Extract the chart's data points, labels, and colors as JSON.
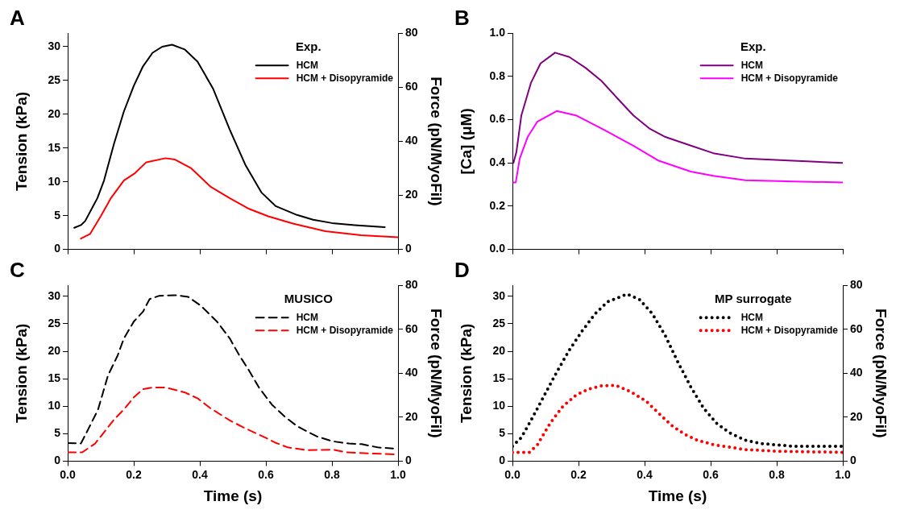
{
  "chart_data": [
    {
      "type": "line",
      "title": "A",
      "ylabel": "Tension (kPa)",
      "y2label": "Force (pN/MyoFil)",
      "legend_title": "Exp.",
      "legend": "top right",
      "line_style": "solid",
      "tick_labels": "y",
      "xlim": [
        0,
        1
      ],
      "xticks": [
        {
          "value": 0,
          "label": null
        },
        {
          "value": 0.2,
          "label": null
        },
        {
          "value": 0.4,
          "label": null
        },
        {
          "value": 0.6,
          "label": null
        },
        {
          "value": 0.8,
          "label": null
        },
        {
          "value": 1,
          "label": null
        }
      ],
      "ylim": [
        0,
        32
      ],
      "yticks": [
        0,
        5,
        10,
        15,
        20,
        25,
        30
      ],
      "y2lim": [
        0,
        80
      ],
      "y2ticks": [
        0,
        20,
        40,
        60,
        80
      ],
      "series": [
        {
          "name": "HCM",
          "color": "#000000",
          "x": [
            0.02,
            0.04,
            0.053,
            0.09,
            0.11,
            0.14,
            0.17,
            0.2,
            0.228,
            0.257,
            0.286,
            0.316,
            0.354,
            0.393,
            0.44,
            0.49,
            0.539,
            0.587,
            0.63,
            0.694,
            0.743,
            0.8,
            0.869,
            0.96
          ],
          "values": [
            3.2,
            3.6,
            4.2,
            7.6,
            10.2,
            15.6,
            20.4,
            24.2,
            27.1,
            29.1,
            30.0,
            30.3,
            29.6,
            27.8,
            23.8,
            17.8,
            12.4,
            8.4,
            6.4,
            5.1,
            4.4,
            3.9,
            3.6,
            3.3
          ]
        },
        {
          "name": "HCM + Disopyramide",
          "color": "#ff0000",
          "x": [
            0.04,
            0.068,
            0.1,
            0.131,
            0.17,
            0.204,
            0.238,
            0.296,
            0.325,
            0.374,
            0.432,
            0.49,
            0.549,
            0.607,
            0.684,
            0.78,
            0.888,
            1.0
          ],
          "values": [
            1.6,
            2.3,
            4.9,
            7.6,
            10.2,
            11.3,
            12.9,
            13.5,
            13.3,
            12.0,
            9.3,
            7.6,
            6.0,
            4.9,
            3.8,
            2.7,
            2.1,
            1.8
          ]
        }
      ]
    },
    {
      "type": "line",
      "title": "B",
      "ylabel": "[Ca] (μM)",
      "legend_title": "Exp.",
      "legend": "top right",
      "line_style": "solid",
      "tick_labels": "y",
      "xlim": [
        0,
        1
      ],
      "xticks": [
        {
          "value": 0,
          "label": null
        },
        {
          "value": 0.2,
          "label": null
        },
        {
          "value": 0.4,
          "label": null
        },
        {
          "value": 0.6,
          "label": null
        },
        {
          "value": 0.8,
          "label": null
        },
        {
          "value": 1,
          "label": null
        }
      ],
      "ylim": [
        0,
        1
      ],
      "yticks": [
        {
          "value": 0,
          "label": "0.0"
        },
        {
          "value": 0.2,
          "label": "0.2"
        },
        {
          "value": 0.4,
          "label": "0.4"
        },
        {
          "value": 0.6,
          "label": "0.6"
        },
        {
          "value": 0.8,
          "label": "0.8"
        },
        {
          "value": 1,
          "label": "1.0"
        }
      ],
      "series": [
        {
          "name": "HCM",
          "color": "#800080",
          "x": [
            0.003,
            0.012,
            0.027,
            0.056,
            0.085,
            0.129,
            0.172,
            0.221,
            0.269,
            0.317,
            0.366,
            0.414,
            0.463,
            0.54,
            0.608,
            0.705,
            0.85,
            1.0
          ],
          "values": [
            0.4,
            0.45,
            0.62,
            0.77,
            0.86,
            0.91,
            0.89,
            0.84,
            0.78,
            0.7,
            0.62,
            0.56,
            0.52,
            0.48,
            0.445,
            0.42,
            0.41,
            0.4
          ]
        },
        {
          "name": "HCM + Disopyramide",
          "color": "#ff00ff",
          "x": [
            0.003,
            0.01,
            0.022,
            0.046,
            0.075,
            0.134,
            0.192,
            0.269,
            0.366,
            0.443,
            0.54,
            0.608,
            0.705,
            0.85,
            1.0
          ],
          "values": [
            0.31,
            0.31,
            0.42,
            0.52,
            0.59,
            0.64,
            0.62,
            0.56,
            0.48,
            0.41,
            0.36,
            0.34,
            0.32,
            0.314,
            0.31
          ]
        }
      ]
    },
    {
      "type": "line",
      "title": "C",
      "xlabel": "Time (s)",
      "ylabel": "Tension (kPa)",
      "y2label": "Force (pN/MyoFil)",
      "legend_title": "MUSICO",
      "legend": "top right",
      "line_style": "dashed",
      "xlim": [
        0,
        1
      ],
      "xticks": [
        {
          "value": 0,
          "label": "0.0"
        },
        {
          "value": 0.2,
          "label": "0.2"
        },
        {
          "value": 0.4,
          "label": "0.4"
        },
        {
          "value": 0.6,
          "label": "0.6"
        },
        {
          "value": 0.8,
          "label": "0.8"
        },
        {
          "value": 1,
          "label": "1.0"
        }
      ],
      "ylim": [
        0,
        32
      ],
      "yticks": [
        0,
        5,
        10,
        15,
        20,
        25,
        30
      ],
      "y2lim": [
        0,
        80
      ],
      "y2ticks": [
        0,
        20,
        40,
        60,
        80
      ],
      "series": [
        {
          "name": "HCM",
          "color": "#000000",
          "x": [
            0,
            0.04,
            0.063,
            0.092,
            0.122,
            0.151,
            0.17,
            0.2,
            0.228,
            0.248,
            0.277,
            0.326,
            0.365,
            0.403,
            0.452,
            0.491,
            0.52,
            0.549,
            0.579,
            0.618,
            0.657,
            0.696,
            0.754,
            0.803,
            0.851,
            0.89,
            0.938,
            0.985
          ],
          "values": [
            3.3,
            3.2,
            5.9,
            9.4,
            15.6,
            19.2,
            22.3,
            25.4,
            27.2,
            29.5,
            30.1,
            30.2,
            29.9,
            28.3,
            25.4,
            22.3,
            19.2,
            16.5,
            13.4,
            10.3,
            8.1,
            6.3,
            4.5,
            3.6,
            3.2,
            3.1,
            2.5,
            2.3
          ]
        },
        {
          "name": "HCM + Disopyramide",
          "color": "#ff0000",
          "x": [
            0,
            0.044,
            0.083,
            0.112,
            0.141,
            0.17,
            0.2,
            0.228,
            0.258,
            0.297,
            0.355,
            0.394,
            0.433,
            0.491,
            0.54,
            0.598,
            0.627,
            0.666,
            0.725,
            0.803,
            0.842,
            0.919,
            1.0
          ],
          "values": [
            1.6,
            1.6,
            3.2,
            5.4,
            7.6,
            9.4,
            11.6,
            13.1,
            13.4,
            13.4,
            12.5,
            11.4,
            9.6,
            7.4,
            5.9,
            4.3,
            3.4,
            2.5,
            2.0,
            2.1,
            1.6,
            1.4,
            1.2
          ]
        }
      ]
    },
    {
      "type": "line",
      "title": "D",
      "xlabel": "Time (s)",
      "ylabel": "Tension (kPa)",
      "y2label": "Force (pN/MyoFil)",
      "legend_title": "MP surrogate",
      "legend": "top right",
      "line_style": "dotted",
      "xlim": [
        0,
        1
      ],
      "xticks": [
        {
          "value": 0,
          "label": "0.0"
        },
        {
          "value": 0.2,
          "label": "0.2"
        },
        {
          "value": 0.4,
          "label": "0.4"
        },
        {
          "value": 0.6,
          "label": "0.6"
        },
        {
          "value": 0.8,
          "label": "0.8"
        },
        {
          "value": 1,
          "label": "1.0"
        }
      ],
      "ylim": [
        0,
        32
      ],
      "yticks": [
        0,
        5,
        10,
        15,
        20,
        25,
        30
      ],
      "y2lim": [
        0,
        80
      ],
      "y2ticks": [
        0,
        20,
        40,
        60,
        80
      ],
      "series": [
        {
          "name": "HCM",
          "color": "#000000",
          "x": [
            0,
            0.027,
            0.056,
            0.095,
            0.134,
            0.172,
            0.211,
            0.25,
            0.288,
            0.347,
            0.385,
            0.424,
            0.463,
            0.501,
            0.54,
            0.579,
            0.618,
            0.656,
            0.705,
            0.753,
            0.85,
            0.997
          ],
          "values": [
            2.7,
            4.3,
            7.4,
            11.8,
            16.2,
            20.2,
            23.7,
            26.8,
            29.0,
            30.4,
            29.4,
            26.8,
            22.8,
            18.0,
            13.5,
            9.6,
            6.9,
            5.2,
            3.8,
            3.2,
            2.7,
            2.7
          ]
        },
        {
          "name": "HCM + Disopyramide",
          "color": "#ff0000",
          "x": [
            0,
            0.051,
            0.076,
            0.114,
            0.153,
            0.192,
            0.23,
            0.269,
            0.313,
            0.356,
            0.405,
            0.443,
            0.482,
            0.521,
            0.56,
            0.608,
            0.705,
            0.802,
            1.0
          ],
          "values": [
            1.6,
            1.6,
            3.0,
            6.9,
            10.0,
            12.0,
            13.1,
            13.7,
            13.8,
            12.7,
            10.9,
            8.7,
            6.5,
            4.9,
            3.8,
            3.0,
            2.1,
            1.8,
            1.6
          ]
        }
      ]
    }
  ]
}
